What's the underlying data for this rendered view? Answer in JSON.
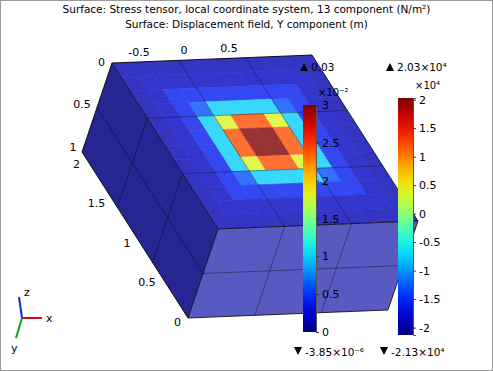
{
  "chart_data": {
    "type": "surface3d",
    "title": [
      "Surface: Stress tensor, local coordinate system, 13 component (N/m²)",
      "Surface: Displacement field, Y component (m)"
    ],
    "xlim": [
      -0.8,
      1.42
    ],
    "xticks": [
      -0.5,
      0,
      0.5
    ],
    "ylim": [
      0,
      1.05
    ],
    "yticks": [
      0,
      0.5,
      1
    ],
    "zlim": [
      0,
      2.1
    ],
    "zticks": [
      0,
      0.5,
      1,
      1.5,
      2
    ],
    "axis_labels": [
      "x",
      "y",
      "z"
    ],
    "surface": {
      "cells": [
        [
          0.0015,
          0.0015,
          0.0015,
          0.0015,
          0.0015,
          0.0015,
          0.0015,
          0.0015,
          0.0015,
          0.0015,
          0.0015,
          0.0015
        ],
        [
          0.0015,
          0.002,
          0.002,
          0.002,
          0.002,
          0.002,
          0.002,
          0.002,
          0.002,
          0.002,
          0.002,
          0.0015
        ],
        [
          0.0015,
          0.002,
          0.004,
          0.004,
          0.004,
          0.004,
          0.004,
          0.004,
          0.004,
          0.004,
          0.002,
          0.0015
        ],
        [
          0.0015,
          0.002,
          0.004,
          0.006,
          0.01,
          0.01,
          0.01,
          0.01,
          0.006,
          0.004,
          0.002,
          0.0015
        ],
        [
          0.0015,
          0.002,
          0.004,
          0.01,
          0.018,
          0.024,
          0.024,
          0.018,
          0.01,
          0.004,
          0.002,
          0.0015
        ],
        [
          0.0015,
          0.002,
          0.004,
          0.01,
          0.024,
          0.03,
          0.03,
          0.024,
          0.01,
          0.004,
          0.002,
          0.0015
        ],
        [
          0.0015,
          0.002,
          0.004,
          0.01,
          0.024,
          0.03,
          0.03,
          0.024,
          0.01,
          0.004,
          0.002,
          0.0015
        ],
        [
          0.0015,
          0.002,
          0.004,
          0.01,
          0.018,
          0.024,
          0.024,
          0.018,
          0.01,
          0.004,
          0.002,
          0.0015
        ],
        [
          0.0015,
          0.002,
          0.004,
          0.006,
          0.01,
          0.01,
          0.01,
          0.01,
          0.006,
          0.004,
          0.002,
          0.0015
        ],
        [
          0.0015,
          0.002,
          0.004,
          0.004,
          0.004,
          0.004,
          0.004,
          0.004,
          0.004,
          0.004,
          0.002,
          0.0015
        ],
        [
          0.0015,
          0.002,
          0.002,
          0.002,
          0.002,
          0.002,
          0.002,
          0.002,
          0.002,
          0.002,
          0.002,
          0.0015
        ],
        [
          0.0015,
          0.0015,
          0.0015,
          0.0015,
          0.0015,
          0.0015,
          0.0015,
          0.0015,
          0.0015,
          0.0015,
          0.0015,
          0.0015
        ]
      ],
      "left_face": 0,
      "bottom_face": 0.001
    },
    "colorbars": [
      {
        "range": [
          -3.85e-06,
          0.03
        ],
        "ticks": [
          0,
          {
            "value": 0.005,
            "label": "0.5"
          },
          {
            "value": 0.01,
            "label": "1"
          },
          {
            "value": 0.015,
            "label": "1.5"
          },
          {
            "value": 0.02,
            "label": "2"
          },
          {
            "value": 0.025,
            "label": "2.5"
          },
          {
            "value": 0.03,
            "label": "3"
          }
        ],
        "multiplier": "×10⁻²",
        "max_label": "0.03",
        "min_label": "-3.85×10⁻⁶"
      },
      {
        "range": [
          -21300,
          20300
        ],
        "ticks": [
          {
            "value": -20000,
            "label": "-2"
          },
          {
            "value": -15000,
            "label": "-1.5"
          },
          {
            "value": -10000,
            "label": "-1"
          },
          {
            "value": -5000,
            "label": "-0.5"
          },
          0,
          {
            "value": 5000,
            "label": "0.5"
          },
          {
            "value": 10000,
            "label": "1"
          },
          {
            "value": 15000,
            "label": "1.5"
          },
          {
            "value": 20000,
            "label": "2"
          }
        ],
        "multiplier": "×10⁴",
        "max_label": "2.03×10⁴",
        "min_label": "-2.13×10⁴"
      }
    ]
  }
}
